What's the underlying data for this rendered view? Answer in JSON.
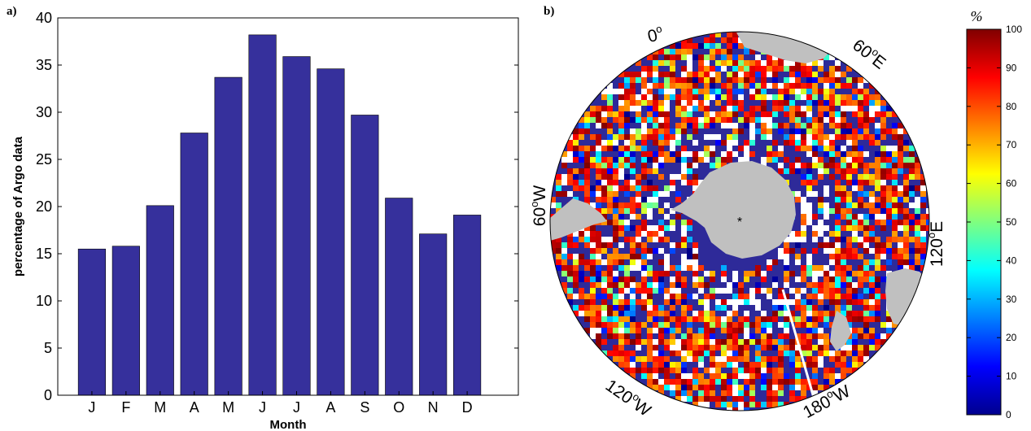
{
  "panel_a": {
    "letter": "a)"
  },
  "panel_b": {
    "letter": "b)",
    "longitude_labels": [
      {
        "text": "0",
        "deg": "o",
        "suffix": ""
      },
      {
        "text": "60",
        "deg": "o",
        "suffix": "E"
      },
      {
        "text": "120",
        "deg": "o",
        "suffix": "E"
      },
      {
        "text": "180",
        "deg": "o",
        "suffix": "W"
      },
      {
        "text": "120",
        "deg": "o",
        "suffix": "W"
      },
      {
        "text": "60",
        "deg": "o",
        "suffix": "W"
      }
    ],
    "colorbar": {
      "unit": "%",
      "ticks": [
        "0",
        "10",
        "20",
        "30",
        "40",
        "50",
        "60",
        "70",
        "80",
        "90",
        "100"
      ]
    },
    "colors": {
      "land": "#c0c0c0",
      "ocean_background": "#2e2a99",
      "pole_marker": "*"
    }
  },
  "chart_data": [
    {
      "type": "bar",
      "categories": [
        "J",
        "F",
        "M",
        "A",
        "M",
        "J",
        "J",
        "A",
        "S",
        "O",
        "N",
        "D"
      ],
      "values": [
        15.5,
        15.8,
        20.1,
        27.8,
        33.7,
        38.2,
        35.9,
        34.6,
        29.7,
        20.9,
        17.1,
        19.1
      ],
      "xlabel": "Month",
      "ylabel": "percentage of Argo data",
      "ylim": [
        0,
        40
      ],
      "yticks": [
        "0",
        "5",
        "10",
        "15",
        "20",
        "25",
        "30",
        "35",
        "40"
      ],
      "bar_color": "#36309c",
      "grid": false
    },
    {
      "type": "heatmap",
      "projection": "south polar stereographic",
      "colormap": "jet",
      "value_range": [
        0,
        100
      ]
    }
  ]
}
